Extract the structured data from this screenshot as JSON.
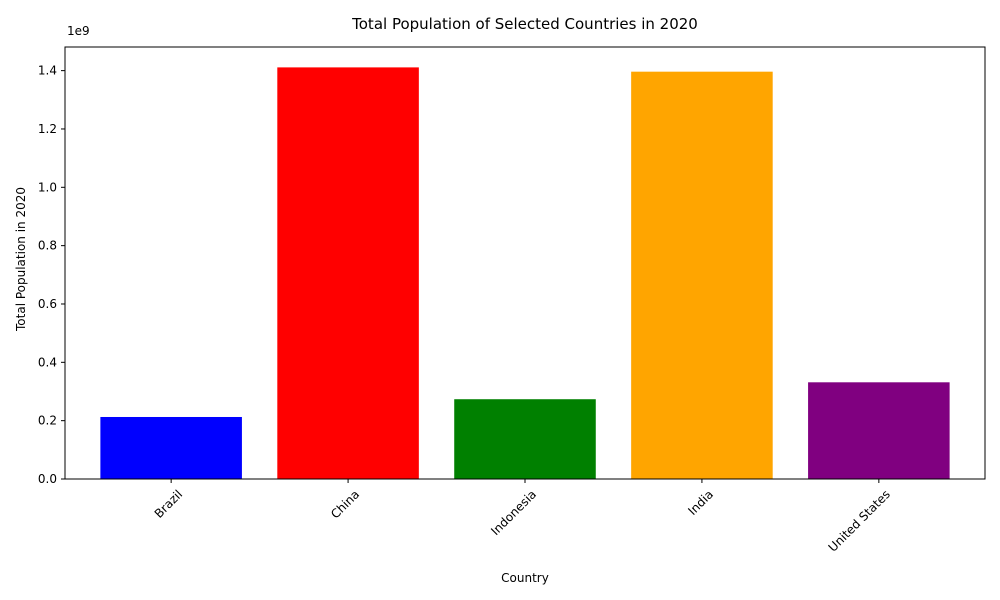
{
  "chart_data": {
    "type": "bar",
    "title": "Total Population of Selected Countries in 2020",
    "xlabel": "Country",
    "ylabel": "Total Population in 2020",
    "y_offset_label": "1e9",
    "categories": [
      "Brazil",
      "China",
      "Indonesia",
      "India",
      "United States"
    ],
    "values": [
      212600000,
      1411100000,
      273500000,
      1396400000,
      331500000
    ],
    "colors": [
      "#0000ff",
      "#ff0000",
      "#008000",
      "#ffa500",
      "#800080"
    ],
    "ylim": [
      0,
      1481000000
    ],
    "yticks": [
      0,
      200000000,
      400000000,
      600000000,
      800000000,
      1000000000,
      1200000000,
      1400000000
    ],
    "ytick_labels": [
      "0.0",
      "0.2",
      "0.4",
      "0.6",
      "0.8",
      "1.0",
      "1.2",
      "1.4"
    ],
    "grid": false,
    "legend": "none"
  }
}
